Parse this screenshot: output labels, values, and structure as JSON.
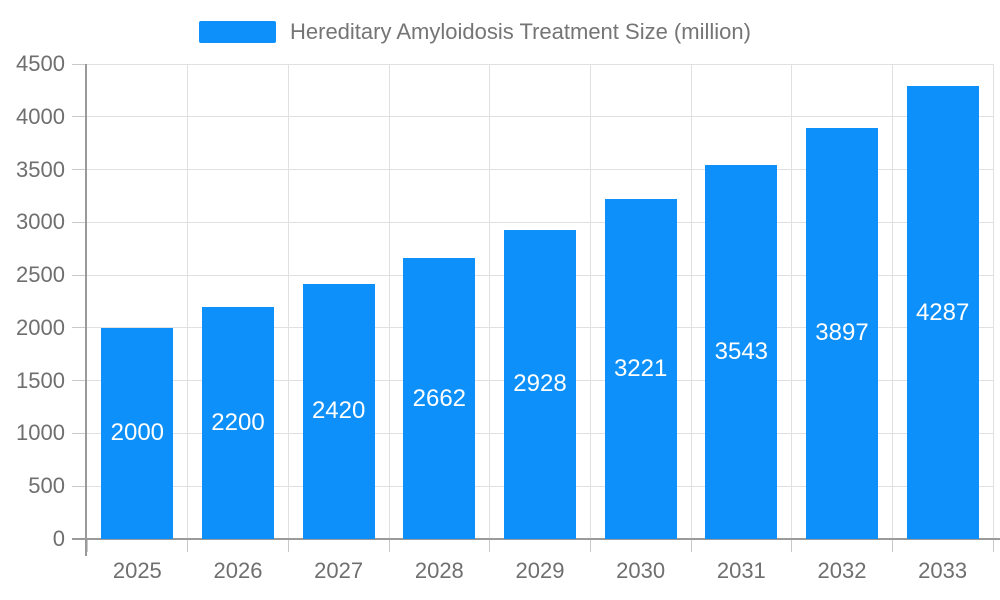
{
  "chart_data": {
    "type": "bar",
    "title": "Hereditary Amyloidosis Treatment Size (million)",
    "legend_position": "top",
    "categories": [
      "2025",
      "2026",
      "2027",
      "2028",
      "2029",
      "2030",
      "2031",
      "2032",
      "2033"
    ],
    "series": [
      {
        "name": "Hereditary Amyloidosis Treatment Size (million)",
        "values": [
          2000,
          2200,
          2420,
          2662,
          2928,
          3221,
          3543,
          3897,
          4287
        ]
      }
    ],
    "xlabel": "",
    "ylabel": "",
    "ylim": [
      0,
      4500
    ],
    "y_ticks": [
      0,
      500,
      1000,
      1500,
      2000,
      2500,
      3000,
      3500,
      4000,
      4500
    ],
    "grid": true,
    "bar_value_labels_inside": true,
    "colors": {
      "bar": "#0d90f9",
      "bar_label": "#ffffff",
      "axis_text": "#6f6f6f",
      "legend_text": "#757575",
      "grid_line": "#e0e0e0",
      "tick_line": "#c9c9c9",
      "axis_line": "#9a9a9a",
      "background": "#ffffff"
    }
  }
}
